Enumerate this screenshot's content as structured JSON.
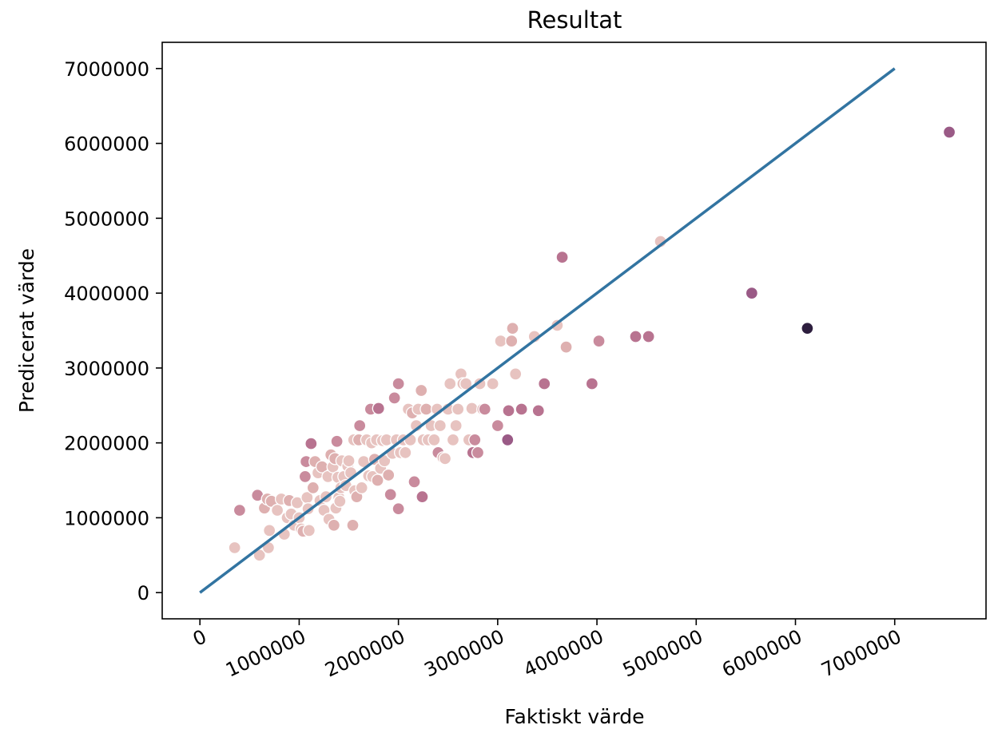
{
  "chart_data": {
    "type": "scatter",
    "title": "Resultat",
    "xlabel": "Faktiskt värde",
    "ylabel": "Predicerat värde",
    "xlim": [
      -380000,
      7920000
    ],
    "ylim": [
      -350000,
      7350000
    ],
    "xticks": [
      0,
      1000000,
      2000000,
      3000000,
      4000000,
      5000000,
      6000000,
      7000000
    ],
    "yticks": [
      0,
      1000000,
      2000000,
      3000000,
      4000000,
      5000000,
      6000000,
      7000000
    ],
    "x_tick_labels": [
      "0",
      "1000000",
      "2000000",
      "3000000",
      "4000000",
      "5000000",
      "6000000",
      "7000000"
    ],
    "y_tick_labels": [
      "0",
      "1000000",
      "2000000",
      "3000000",
      "4000000",
      "5000000",
      "6000000",
      "7000000"
    ],
    "grid": false,
    "reference_line": {
      "x": [
        0,
        7000000
      ],
      "y": [
        0,
        7000000
      ],
      "color": "#3274a1"
    },
    "colors": [
      "#e7c3c0",
      "#deb0b0",
      "#c98b9d",
      "#b87390",
      "#9a5a86",
      "#2d1e3e"
    ],
    "points": [
      [
        350000,
        600000,
        0
      ],
      [
        400000,
        1100000,
        2
      ],
      [
        580000,
        1300000,
        2
      ],
      [
        600000,
        500000,
        0
      ],
      [
        650000,
        1130000,
        1
      ],
      [
        680000,
        1250000,
        1
      ],
      [
        690000,
        600000,
        0
      ],
      [
        700000,
        830000,
        0
      ],
      [
        720000,
        1220000,
        1
      ],
      [
        780000,
        1100000,
        0
      ],
      [
        820000,
        1250000,
        0
      ],
      [
        850000,
        780000,
        0
      ],
      [
        880000,
        1000000,
        0
      ],
      [
        900000,
        1230000,
        1
      ],
      [
        920000,
        1050000,
        0
      ],
      [
        950000,
        900000,
        0
      ],
      [
        980000,
        1200000,
        0
      ],
      [
        1000000,
        1000000,
        0
      ],
      [
        1020000,
        850000,
        0
      ],
      [
        1040000,
        820000,
        1
      ],
      [
        1060000,
        1550000,
        2
      ],
      [
        1070000,
        1750000,
        2
      ],
      [
        1080000,
        1270000,
        0
      ],
      [
        1090000,
        1120000,
        0
      ],
      [
        1100000,
        830000,
        0
      ],
      [
        1120000,
        1990000,
        3
      ],
      [
        1140000,
        1400000,
        1
      ],
      [
        1160000,
        1750000,
        1
      ],
      [
        1190000,
        1600000,
        0
      ],
      [
        1210000,
        1230000,
        0
      ],
      [
        1230000,
        1680000,
        1
      ],
      [
        1250000,
        1100000,
        0
      ],
      [
        1270000,
        1280000,
        0
      ],
      [
        1290000,
        1550000,
        0
      ],
      [
        1300000,
        980000,
        0
      ],
      [
        1320000,
        1840000,
        1
      ],
      [
        1340000,
        1680000,
        0
      ],
      [
        1350000,
        900000,
        1
      ],
      [
        1360000,
        1790000,
        1
      ],
      [
        1370000,
        1130000,
        0
      ],
      [
        1380000,
        2020000,
        2
      ],
      [
        1390000,
        1540000,
        0
      ],
      [
        1400000,
        1270000,
        0
      ],
      [
        1410000,
        1220000,
        0
      ],
      [
        1420000,
        1400000,
        0
      ],
      [
        1430000,
        1760000,
        0
      ],
      [
        1450000,
        1550000,
        0
      ],
      [
        1470000,
        1430000,
        0
      ],
      [
        1490000,
        1690000,
        0
      ],
      [
        1500000,
        1760000,
        0
      ],
      [
        1520000,
        1600000,
        0
      ],
      [
        1540000,
        900000,
        1
      ],
      [
        1550000,
        2040000,
        0
      ],
      [
        1560000,
        1360000,
        0
      ],
      [
        1580000,
        1280000,
        1
      ],
      [
        1600000,
        2040000,
        1
      ],
      [
        1610000,
        2230000,
        2
      ],
      [
        1630000,
        1400000,
        0
      ],
      [
        1650000,
        1750000,
        0
      ],
      [
        1680000,
        2040000,
        0
      ],
      [
        1700000,
        1560000,
        0
      ],
      [
        1720000,
        2450000,
        2
      ],
      [
        1730000,
        2000000,
        0
      ],
      [
        1740000,
        1550000,
        0
      ],
      [
        1760000,
        1780000,
        1
      ],
      [
        1780000,
        2040000,
        0
      ],
      [
        1790000,
        1500000,
        1
      ],
      [
        1800000,
        2460000,
        3
      ],
      [
        1820000,
        1660000,
        0
      ],
      [
        1840000,
        2030000,
        0
      ],
      [
        1860000,
        1760000,
        0
      ],
      [
        1880000,
        2040000,
        0
      ],
      [
        1900000,
        1570000,
        1
      ],
      [
        1920000,
        1310000,
        2
      ],
      [
        1940000,
        1860000,
        0
      ],
      [
        1960000,
        2600000,
        2
      ],
      [
        1980000,
        2040000,
        0
      ],
      [
        2000000,
        1120000,
        2
      ],
      [
        2000000,
        2790000,
        2
      ],
      [
        2020000,
        1870000,
        0
      ],
      [
        2050000,
        2040000,
        0
      ],
      [
        2070000,
        1870000,
        0
      ],
      [
        2100000,
        2450000,
        0
      ],
      [
        2120000,
        2040000,
        0
      ],
      [
        2140000,
        2400000,
        1
      ],
      [
        2160000,
        1480000,
        2
      ],
      [
        2180000,
        2230000,
        0
      ],
      [
        2200000,
        2450000,
        0
      ],
      [
        2230000,
        2700000,
        1
      ],
      [
        2240000,
        1280000,
        3
      ],
      [
        2250000,
        2040000,
        0
      ],
      [
        2280000,
        2450000,
        1
      ],
      [
        2300000,
        2040000,
        0
      ],
      [
        2330000,
        2230000,
        0
      ],
      [
        2360000,
        2040000,
        0
      ],
      [
        2390000,
        2450000,
        0
      ],
      [
        2400000,
        1870000,
        2
      ],
      [
        2420000,
        2230000,
        0
      ],
      [
        2450000,
        1800000,
        1
      ],
      [
        2470000,
        1790000,
        0
      ],
      [
        2500000,
        2450000,
        0
      ],
      [
        2520000,
        2790000,
        0
      ],
      [
        2550000,
        2040000,
        0
      ],
      [
        2580000,
        2230000,
        0
      ],
      [
        2600000,
        2450000,
        0
      ],
      [
        2630000,
        2920000,
        0
      ],
      [
        2650000,
        2790000,
        0
      ],
      [
        2680000,
        2790000,
        0
      ],
      [
        2710000,
        2040000,
        0
      ],
      [
        2740000,
        2460000,
        0
      ],
      [
        2750000,
        1870000,
        3
      ],
      [
        2770000,
        2040000,
        2
      ],
      [
        2800000,
        1870000,
        2
      ],
      [
        2820000,
        2790000,
        0
      ],
      [
        2850000,
        2450000,
        1
      ],
      [
        2870000,
        2450000,
        2
      ],
      [
        2950000,
        2790000,
        0
      ],
      [
        3000000,
        2230000,
        2
      ],
      [
        3030000,
        3360000,
        0
      ],
      [
        3100000,
        2040000,
        4
      ],
      [
        3110000,
        2430000,
        3
      ],
      [
        3140000,
        3360000,
        1
      ],
      [
        3150000,
        3530000,
        1
      ],
      [
        3180000,
        2920000,
        0
      ],
      [
        3240000,
        2450000,
        3
      ],
      [
        3370000,
        3420000,
        0
      ],
      [
        3410000,
        2430000,
        3
      ],
      [
        3470000,
        2790000,
        3
      ],
      [
        3600000,
        3570000,
        0
      ],
      [
        3650000,
        4480000,
        3
      ],
      [
        3690000,
        3280000,
        1
      ],
      [
        3950000,
        2790000,
        3
      ],
      [
        4020000,
        3360000,
        2
      ],
      [
        4390000,
        3420000,
        3
      ],
      [
        4520000,
        3420000,
        3
      ],
      [
        4640000,
        4690000,
        0
      ],
      [
        5560000,
        4000000,
        4
      ],
      [
        6120000,
        3530000,
        5
      ],
      [
        7550000,
        6150000,
        4
      ]
    ]
  }
}
